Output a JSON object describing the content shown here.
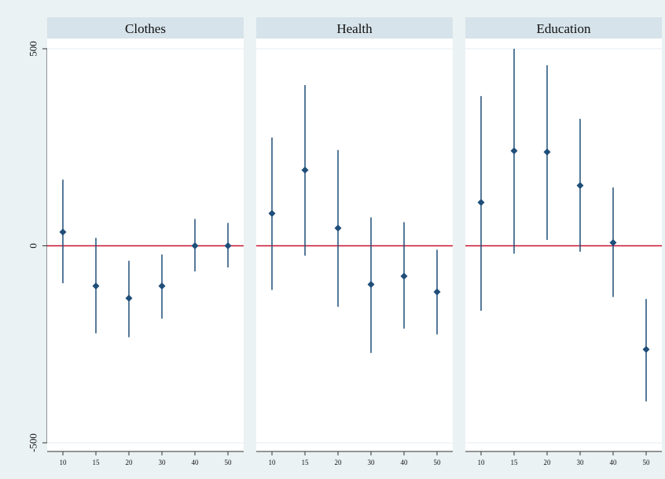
{
  "chart_data": {
    "type": "scatter",
    "subtype": "point-estimates-with-confidence-intervals",
    "title": "",
    "xlabel": "",
    "ylabel": "",
    "ylim": [
      -500,
      500
    ],
    "yticks": [
      {
        "value": 500,
        "label": "500"
      },
      {
        "value": 0,
        "label": "0"
      },
      {
        "value": -500,
        "label": "-500"
      }
    ],
    "reference_line": {
      "value": 0,
      "color": "#c8102e"
    },
    "grid": true,
    "legend": "none",
    "colors": {
      "outer_background": "#eaf2f3",
      "panel_background": "#ffffff",
      "header_background": "#d6e3ea",
      "marker": "#1f4e79",
      "gridline": "#e6eef2"
    },
    "categories": [
      "10",
      "15",
      "20",
      "30",
      "40",
      "50"
    ],
    "panels": [
      {
        "name": "Clothes",
        "points": [
          {
            "x": "10",
            "y": 35,
            "lo": -95,
            "hi": 168
          },
          {
            "x": "15",
            "y": -102,
            "lo": -222,
            "hi": 20
          },
          {
            "x": "20",
            "y": -133,
            "lo": -232,
            "hi": -38
          },
          {
            "x": "30",
            "y": -102,
            "lo": -185,
            "hi": -22
          },
          {
            "x": "40",
            "y": 0,
            "lo": -65,
            "hi": 68
          },
          {
            "x": "50",
            "y": 0,
            "lo": -55,
            "hi": 58
          }
        ]
      },
      {
        "name": "Health",
        "points": [
          {
            "x": "10",
            "y": 82,
            "lo": -112,
            "hi": 275
          },
          {
            "x": "15",
            "y": 192,
            "lo": -25,
            "hi": 408
          },
          {
            "x": "20",
            "y": 45,
            "lo": -155,
            "hi": 243
          },
          {
            "x": "30",
            "y": -98,
            "lo": -272,
            "hi": 72
          },
          {
            "x": "40",
            "y": -77,
            "lo": -210,
            "hi": 60
          },
          {
            "x": "50",
            "y": -117,
            "lo": -225,
            "hi": -10
          }
        ]
      },
      {
        "name": "Education",
        "points": [
          {
            "x": "10",
            "y": 110,
            "lo": -165,
            "hi": 380
          },
          {
            "x": "15",
            "y": 241,
            "lo": -20,
            "hi": 500
          },
          {
            "x": "20",
            "y": 238,
            "lo": 15,
            "hi": 458
          },
          {
            "x": "30",
            "y": 153,
            "lo": -15,
            "hi": 322
          },
          {
            "x": "40",
            "y": 8,
            "lo": -130,
            "hi": 148
          },
          {
            "x": "50",
            "y": -263,
            "lo": -395,
            "hi": -135
          }
        ]
      }
    ]
  }
}
